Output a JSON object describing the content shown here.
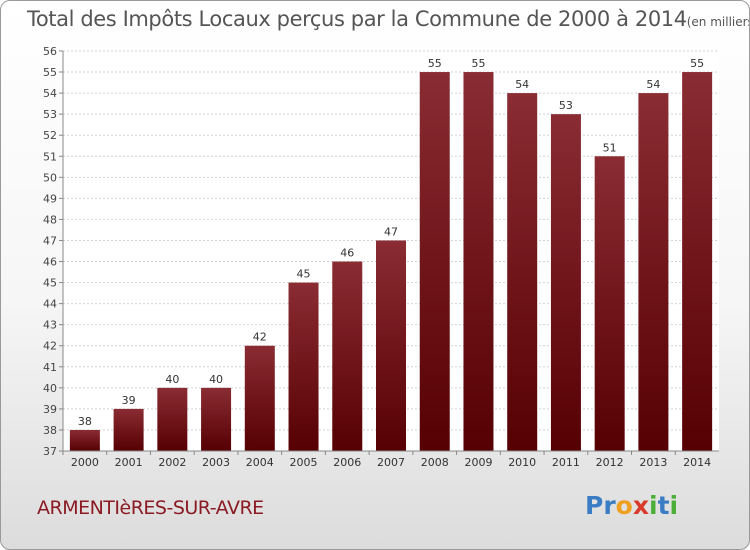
{
  "header": {
    "title": "Total des Impôts Locaux perçus par la Commune de 2000 à 2014",
    "unit": "(en milliers d'€)"
  },
  "footer": {
    "commune": "ARMENTIèRES-SUR-AVRE",
    "brand": [
      "P",
      "r",
      "o",
      "x",
      "i",
      "t",
      "i"
    ]
  },
  "colors": {
    "bar_top": "#8a2c33",
    "bar_bottom": "#560003",
    "accent": "#8b1a22",
    "brand": [
      "#3b7dc4",
      "#3b7dc4",
      "#f0a020",
      "#d93a2a",
      "#4caf3a",
      "#3b7dc4",
      "#4caf3a"
    ]
  },
  "chart_data": {
    "type": "bar",
    "title": "Total des Impôts Locaux perçus par la Commune de 2000 à 2014",
    "xlabel": "",
    "ylabel": "",
    "categories": [
      "2000",
      "2001",
      "2002",
      "2003",
      "2004",
      "2005",
      "2006",
      "2007",
      "2008",
      "2009",
      "2010",
      "2011",
      "2012",
      "2013",
      "2014"
    ],
    "values": [
      38,
      39,
      40,
      40,
      42,
      45,
      46,
      47,
      55,
      55,
      54,
      53,
      51,
      54,
      55
    ],
    "ylim": [
      37,
      56
    ],
    "yticks": [
      "37",
      "38",
      "39",
      "40",
      "41",
      "42",
      "43",
      "44",
      "45",
      "46",
      "47",
      "48",
      "49",
      "50",
      "51",
      "52",
      "53",
      "54",
      "55",
      "56"
    ],
    "grid": true
  }
}
